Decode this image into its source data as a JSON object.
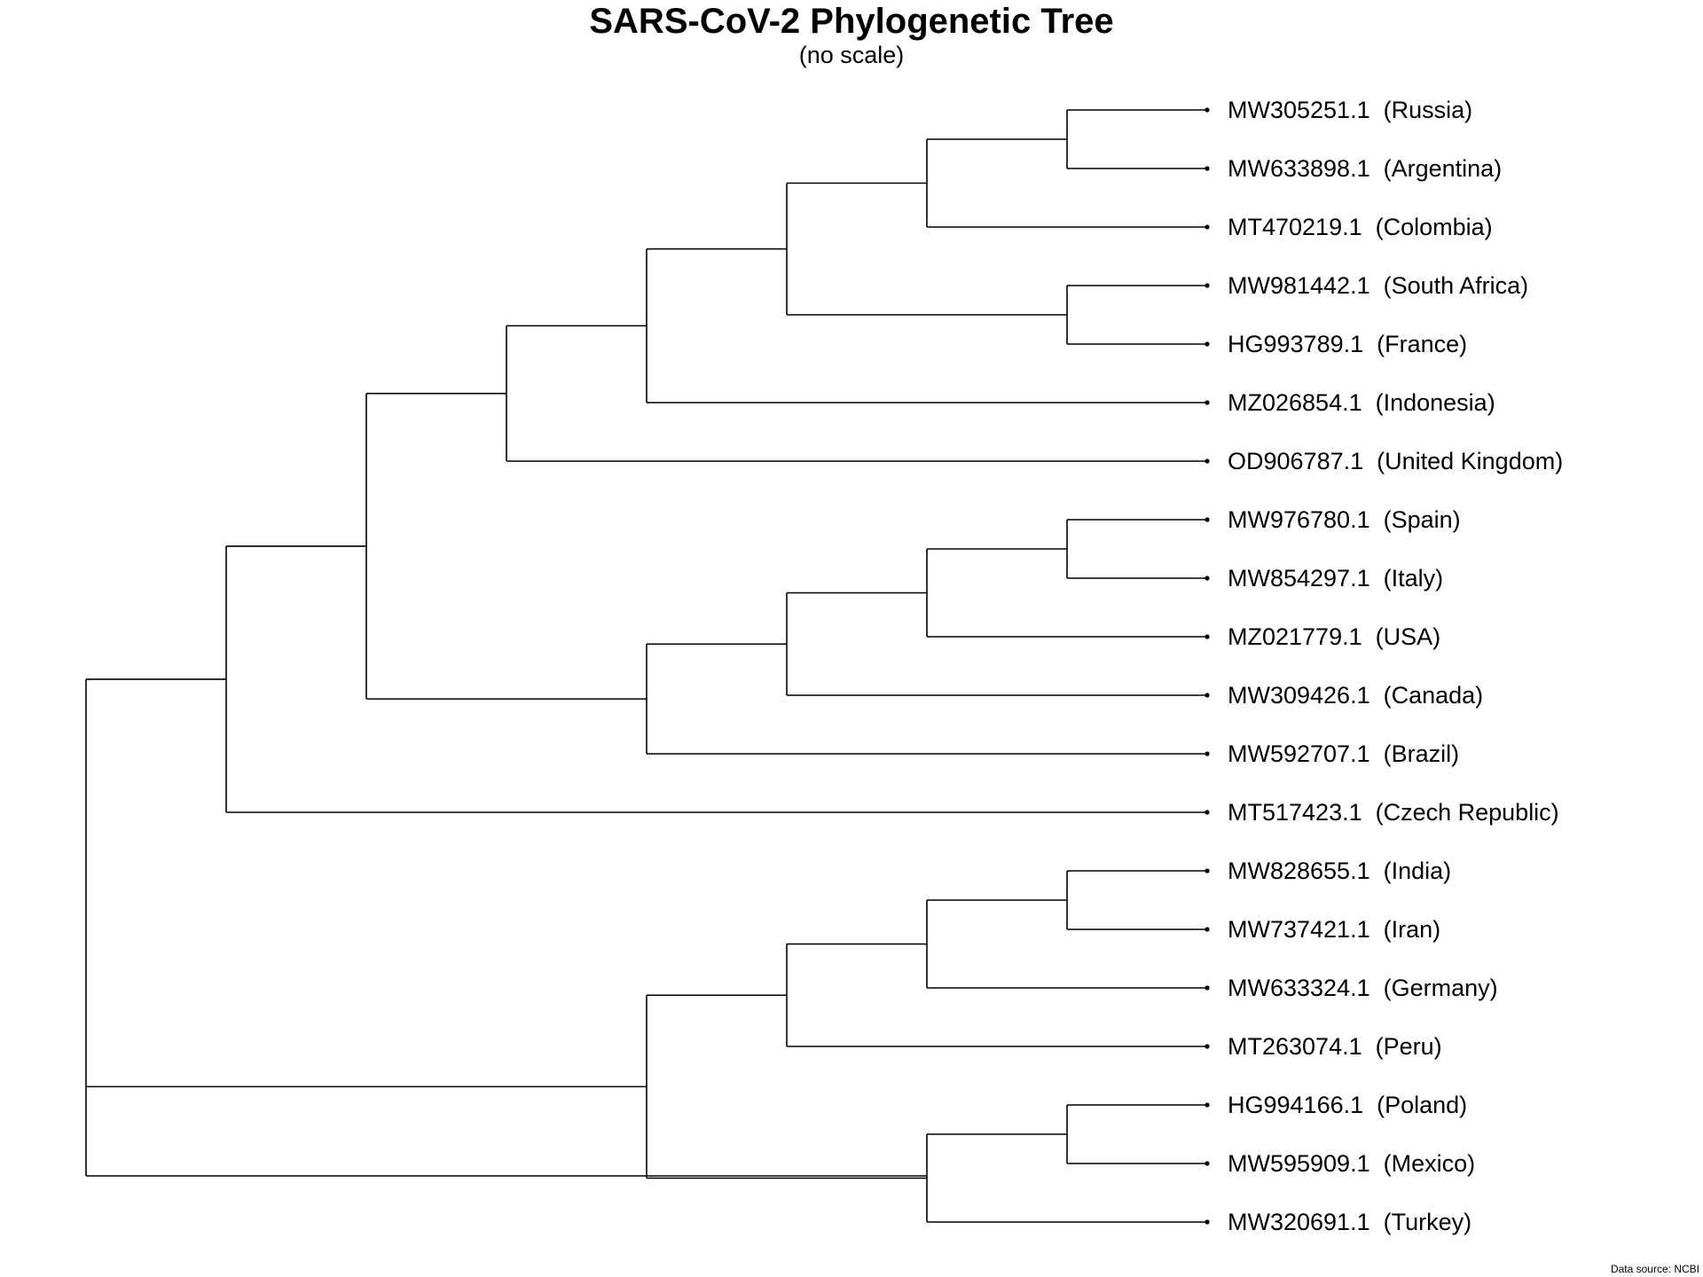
{
  "title": "SARS-CoV-2 Phylogenetic Tree",
  "subtitle": "(no scale)",
  "caption": "Data source: NCBI",
  "colors": {
    "line": "#000000",
    "background": "#ffffff"
  },
  "tips": [
    {
      "id": "MW305251.1",
      "country": "Russia"
    },
    {
      "id": "MW633898.1",
      "country": "Argentina"
    },
    {
      "id": "MT470219.1",
      "country": "Colombia"
    },
    {
      "id": "MW981442.1",
      "country": "South Africa"
    },
    {
      "id": "HG993789.1",
      "country": "France"
    },
    {
      "id": "MZ026854.1",
      "country": "Indonesia"
    },
    {
      "id": "OD906787.1",
      "country": "United Kingdom"
    },
    {
      "id": "MW976780.1",
      "country": "Spain"
    },
    {
      "id": "MW854297.1",
      "country": "Italy"
    },
    {
      "id": "MZ021779.1",
      "country": "USA"
    },
    {
      "id": "MW309426.1",
      "country": "Canada"
    },
    {
      "id": "MW592707.1",
      "country": "Brazil"
    },
    {
      "id": "MT517423.1",
      "country": "Czech Republic"
    },
    {
      "id": "MW828655.1",
      "country": "India"
    },
    {
      "id": "MW737421.1",
      "country": "Iran"
    },
    {
      "id": "MW633324.1",
      "country": "Germany"
    },
    {
      "id": "MT263074.1",
      "country": "Peru"
    },
    {
      "id": "HG994166.1",
      "country": "Poland"
    },
    {
      "id": "MW595909.1",
      "country": "Mexico"
    },
    {
      "id": "MW320691.1",
      "country": "Turkey"
    }
  ],
  "tree": {
    "children": [
      {
        "children": [
          {
            "children": [
              {
                "children": [
                  {
                    "children": [
                      {
                        "children": [
                          {
                            "children": [
                              {
                                "tip": 0
                              },
                              {
                                "tip": 1
                              }
                            ]
                          },
                          {
                            "tip": 2
                          }
                        ]
                      },
                      {
                        "children": [
                          {
                            "tip": 3
                          },
                          {
                            "tip": 4
                          }
                        ]
                      }
                    ]
                  },
                  {
                    "tip": 5
                  }
                ]
              },
              {
                "tip": 6
              }
            ]
          },
          {
            "children": [
              {
                "children": [
                  {
                    "children": [
                      {
                        "children": [
                          {
                            "tip": 7
                          },
                          {
                            "tip": 8
                          }
                        ]
                      },
                      {
                        "tip": 9
                      }
                    ]
                  },
                  {
                    "tip": 10
                  }
                ]
              },
              {
                "tip": 11
              }
            ]
          }
        ]
      },
      {
        "tip": 12
      }
    ]
  },
  "tree2": {
    "children": [
      {
        "children": [
          {
            "children": [
              {
                "children": [
                  {
                    "tip": 13
                  },
                  {
                    "tip": 14
                  }
                ]
              },
              {
                "tip": 15
              }
            ]
          },
          {
            "tip": 16
          }
        ]
      },
      {
        "children": [
          {
            "children": [
              {
                "tip": 17
              },
              {
                "tip": 18
              }
            ]
          },
          {
            "tip": 19
          }
        ]
      }
    ]
  }
}
